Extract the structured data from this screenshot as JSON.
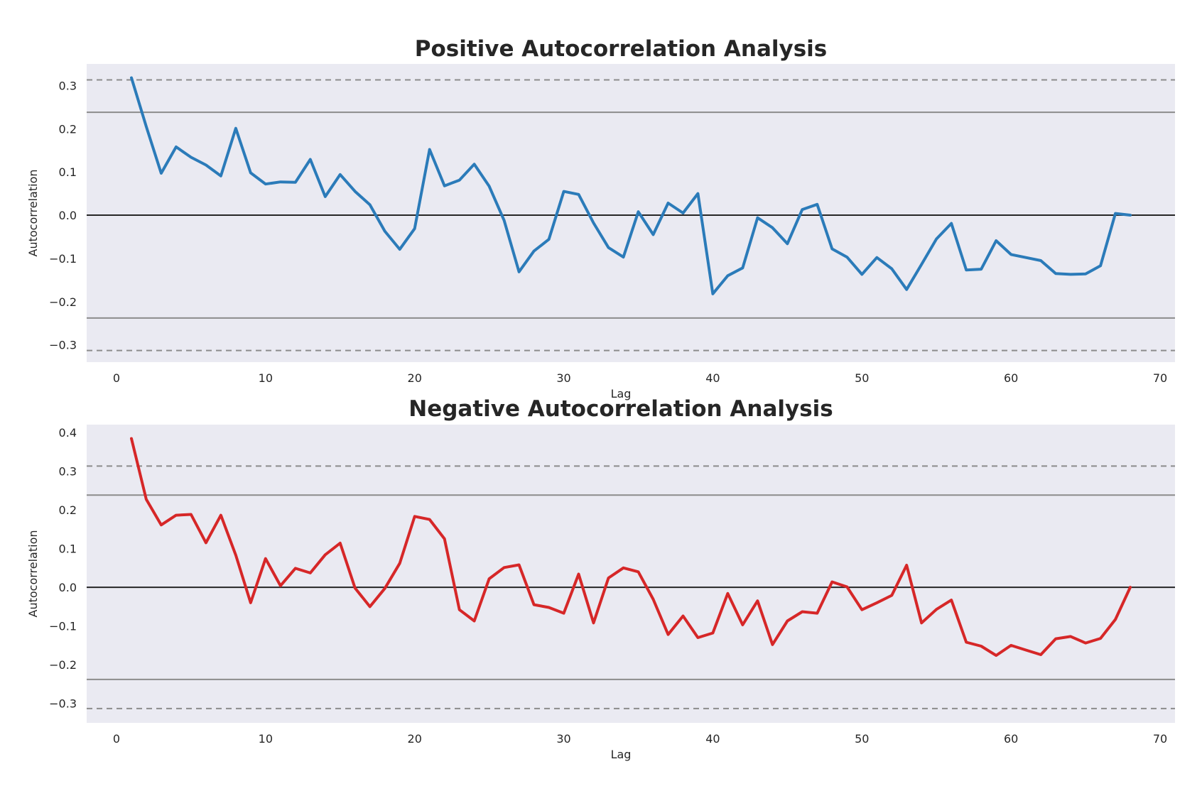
{
  "chart_data": [
    {
      "type": "line",
      "title": "Positive Autocorrelation Analysis",
      "xlabel": "Lag",
      "ylabel": "Autocorrelation",
      "xlim": [
        -2,
        71
      ],
      "ylim": [
        -0.34,
        0.35
      ],
      "xticks": [
        0,
        10,
        20,
        30,
        40,
        50,
        60,
        70
      ],
      "yticks": [
        0.3,
        0.2,
        0.1,
        0.0,
        -0.1,
        -0.2,
        -0.3
      ],
      "ytick_labels": [
        "0.3",
        "0.2",
        "0.1",
        "0.0",
        "−0.1",
        "−0.2",
        "−0.3"
      ],
      "grid": false,
      "series_color": "#2b7bb9",
      "reference_lines": {
        "zero": 0.0,
        "confidence_95": 0.238,
        "confidence_99": 0.313
      },
      "series": [
        {
          "x": [
            1,
            2,
            3,
            4,
            5,
            6,
            7,
            8,
            9,
            10,
            11,
            12,
            13,
            14,
            15,
            16,
            17,
            18,
            19,
            20,
            21,
            22,
            23,
            24,
            25,
            26,
            27,
            28,
            29,
            30,
            31,
            32,
            33,
            34,
            35,
            36,
            37,
            38,
            39,
            40,
            41,
            42,
            43,
            44,
            45,
            46,
            47,
            48,
            49,
            50,
            51,
            52,
            53,
            54,
            55,
            56,
            57,
            58,
            59,
            60,
            61,
            62,
            63,
            64,
            65,
            66,
            67,
            68
          ],
          "values": [
            0.318,
            0.205,
            0.097,
            0.158,
            0.134,
            0.116,
            0.091,
            0.201,
            0.098,
            0.072,
            0.077,
            0.076,
            0.129,
            0.043,
            0.094,
            0.055,
            0.024,
            -0.037,
            -0.079,
            -0.031,
            0.152,
            0.068,
            0.081,
            0.118,
            0.067,
            -0.012,
            -0.131,
            -0.083,
            -0.056,
            0.055,
            0.048,
            -0.018,
            -0.075,
            -0.097,
            0.008,
            -0.045,
            0.028,
            0.005,
            0.05,
            -0.182,
            -0.14,
            -0.122,
            -0.006,
            -0.029,
            -0.066,
            0.013,
            0.025,
            -0.078,
            -0.097,
            -0.137,
            -0.098,
            -0.124,
            -0.172,
            -0.114,
            -0.055,
            -0.019,
            -0.127,
            -0.125,
            -0.059,
            -0.091,
            -0.098,
            -0.105,
            -0.135,
            -0.137,
            -0.136,
            -0.117,
            0.004,
            0.0
          ]
        }
      ]
    },
    {
      "type": "line",
      "title": "Negative Autocorrelation Analysis",
      "xlabel": "Lag",
      "ylabel": "Autocorrelation",
      "xlim": [
        -2,
        71
      ],
      "ylim": [
        -0.35,
        0.42
      ],
      "xticks": [
        0,
        10,
        20,
        30,
        40,
        50,
        60,
        70
      ],
      "yticks": [
        0.4,
        0.3,
        0.2,
        0.1,
        0.0,
        -0.1,
        -0.2,
        -0.3
      ],
      "ytick_labels": [
        "0.4",
        "0.3",
        "0.2",
        "0.1",
        "0.0",
        "−0.1",
        "−0.2",
        "−0.3"
      ],
      "grid": false,
      "series_color": "#d62728",
      "reference_lines": {
        "zero": 0.0,
        "confidence_95": 0.238,
        "confidence_99": 0.313
      },
      "series": [
        {
          "x": [
            1,
            2,
            3,
            4,
            5,
            6,
            7,
            8,
            9,
            10,
            11,
            12,
            13,
            14,
            15,
            16,
            17,
            18,
            19,
            20,
            21,
            22,
            23,
            24,
            25,
            26,
            27,
            28,
            29,
            30,
            31,
            32,
            33,
            34,
            35,
            36,
            37,
            38,
            39,
            40,
            41,
            42,
            43,
            44,
            45,
            46,
            47,
            48,
            49,
            50,
            51,
            52,
            53,
            54,
            55,
            56,
            57,
            58,
            59,
            60,
            61,
            62,
            63,
            64,
            65,
            66,
            67,
            68
          ],
          "values": [
            0.384,
            0.227,
            0.161,
            0.186,
            0.188,
            0.115,
            0.186,
            0.083,
            -0.04,
            0.074,
            0.004,
            0.049,
            0.037,
            0.084,
            0.114,
            -0.002,
            -0.05,
            -0.003,
            0.062,
            0.183,
            0.175,
            0.125,
            -0.058,
            -0.087,
            0.022,
            0.051,
            0.058,
            -0.045,
            -0.052,
            -0.067,
            0.034,
            -0.092,
            0.024,
            0.05,
            0.04,
            -0.031,
            -0.122,
            -0.074,
            -0.13,
            -0.118,
            -0.016,
            -0.097,
            -0.035,
            -0.148,
            -0.087,
            -0.063,
            -0.067,
            0.014,
            0.001,
            -0.058,
            -0.04,
            -0.021,
            0.057,
            -0.092,
            -0.057,
            -0.033,
            -0.142,
            -0.152,
            -0.176,
            -0.15,
            -0.162,
            -0.174,
            -0.133,
            -0.127,
            -0.144,
            -0.132,
            -0.083,
            0.0
          ]
        }
      ]
    }
  ]
}
